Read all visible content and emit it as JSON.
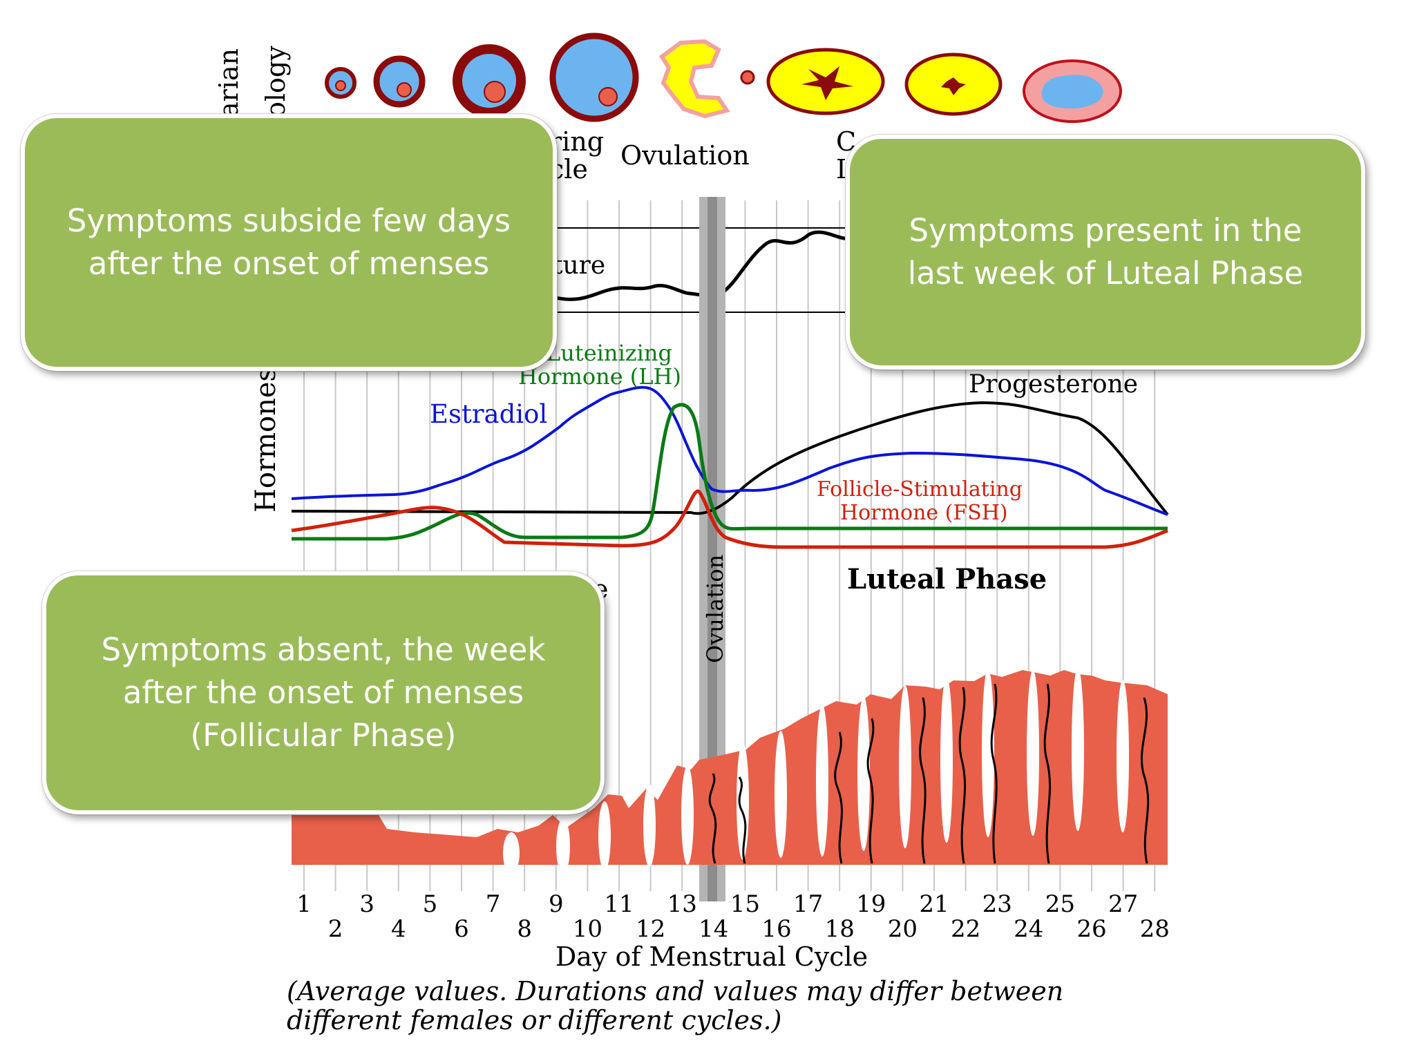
{
  "diagram": {
    "row_labels": {
      "ovarian": [
        "arian",
        "ology"
      ],
      "hormones": "Hormones"
    },
    "stage_labels": {
      "maturing_follicle": [
        "ring",
        "cle"
      ],
      "ovulation": "Ovulation",
      "corpus_luteum": [
        "C",
        "I"
      ]
    },
    "temperature_label": "ture",
    "hormone_labels": {
      "lh": [
        "Luteinizing",
        "Hormone (LH)"
      ],
      "estradiol": "Estradiol",
      "progesterone": "Progesterone",
      "fsh": [
        "Follicle-Stimulating",
        "Hormone (FSH)"
      ]
    },
    "phase_labels": {
      "luteal": "Luteal Phase",
      "partial": "e",
      "ovulation_vertical": "Ovulation"
    },
    "x_axis": {
      "odd_days": [
        "1",
        "3",
        "5",
        "7",
        "9",
        "11",
        "13",
        "15",
        "17",
        "19",
        "21",
        "23",
        "25",
        "27"
      ],
      "even_days": [
        "2",
        "4",
        "6",
        "8",
        "10",
        "12",
        "14",
        "16",
        "18",
        "20",
        "22",
        "24",
        "26",
        "28"
      ],
      "title": "Day of Menstrual Cycle"
    },
    "footnote": [
      "(Average values. Durations and values may differ between",
      "different females or different cycles.)"
    ],
    "colors": {
      "estradiol": "#0a14d8",
      "lh": "#0a7a14",
      "fsh": "#d2200a",
      "progesterone": "#000000",
      "endometrium": "#e8604a",
      "follicle_fill": "#6cb4f0",
      "follicle_ring": "#8b0a0a",
      "corpus_yellow": "#ffff00"
    }
  },
  "callouts": {
    "top_left": "Symptoms subside few days after the onset of menses",
    "top_right": "Symptoms present in the last week of Luteal Phase",
    "bottom_left": "Symptoms  absent, the week after the onset of menses (Follicular Phase)"
  }
}
